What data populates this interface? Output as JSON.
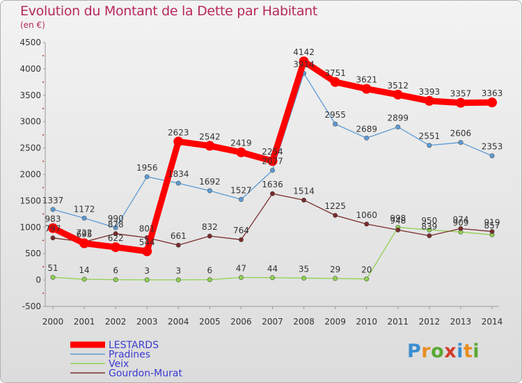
{
  "header": {
    "title": "Evolution du Montant de la Dette par Habitant",
    "subtitle": "(en €)"
  },
  "logo": {
    "text": "Proxiti",
    "colors": [
      "#3a8fd0",
      "#e98c1f",
      "#5aa832",
      "#d33b2a",
      "#3a8fd0",
      "#e98c1f",
      "#5aa832"
    ]
  },
  "chart_data": {
    "type": "line",
    "x": [
      "2000",
      "2001",
      "2002",
      "2003",
      "2004",
      "2005",
      "2006",
      "2007",
      "2008",
      "2009",
      "2010",
      "2011",
      "2012",
      "2013",
      "2014"
    ],
    "yticks": [
      -500,
      0,
      500,
      1000,
      1500,
      2000,
      2500,
      3000,
      3500,
      4000,
      4500
    ],
    "ylim": [
      -500,
      4500
    ],
    "grid": false,
    "legend_position": "bottom-left",
    "series": [
      {
        "name": "LESTARDS",
        "color": "#ff0000",
        "values": [
          983,
          695,
          622,
          544,
          2623,
          2542,
          2419,
          2254,
          4142,
          3751,
          3621,
          3512,
          3393,
          3357,
          3363
        ]
      },
      {
        "name": "Pradines",
        "color": "#5b9bd5",
        "values": [
          1337,
          1172,
          990,
          1956,
          1834,
          1692,
          1527,
          2077,
          3914,
          2955,
          2689,
          2899,
          2551,
          2606,
          2353
        ]
      },
      {
        "name": "Veix",
        "color": "#8fd14f",
        "values": [
          51,
          14,
          6,
          3,
          3,
          6,
          47,
          44,
          35,
          29,
          20,
          998,
          950,
          909,
          857
        ]
      },
      {
        "name": "Gourdon-Murat",
        "color": "#7a2a2a",
        "values": [
          797,
          722,
          878,
          801,
          661,
          832,
          764,
          1636,
          1514,
          1225,
          1060,
          948,
          839,
          974,
          919
        ]
      }
    ]
  }
}
